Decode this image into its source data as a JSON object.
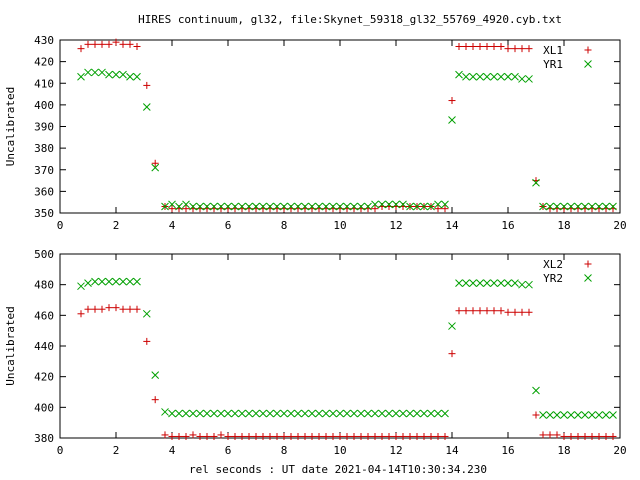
{
  "title": "HIRES continuum, gl32, file:Skynet_59318_gl32_55769_4920.cyb.txt",
  "xlabel": "rel seconds : UT date 2021-04-14T10:30:34.230",
  "colors": {
    "plus": "#cc0000",
    "cross": "#00a000"
  },
  "chart_data": [
    {
      "type": "scatter",
      "ylabel": "Uncalibrated",
      "xlim": [
        0,
        20
      ],
      "ylim": [
        350,
        430
      ],
      "xticks": [
        0,
        2,
        4,
        6,
        8,
        10,
        12,
        14,
        16,
        18,
        20
      ],
      "yticks": [
        350,
        360,
        370,
        380,
        390,
        400,
        410,
        420,
        430
      ],
      "legend_position": "top-right",
      "series": [
        {
          "name": "XL1",
          "marker": "plus",
          "color": "#cc0000",
          "x": [
            0.75,
            1.0,
            1.25,
            1.5,
            1.75,
            2.0,
            2.25,
            2.5,
            2.75,
            3.1,
            3.4,
            3.75,
            4.0,
            4.25,
            4.5,
            4.75,
            5.0,
            5.25,
            5.5,
            5.75,
            6.0,
            6.25,
            6.5,
            6.75,
            7.0,
            7.25,
            7.5,
            7.75,
            8.0,
            8.25,
            8.5,
            8.75,
            9.0,
            9.25,
            9.5,
            9.75,
            10.0,
            10.25,
            10.5,
            10.75,
            11.0,
            11.25,
            11.5,
            11.75,
            12.0,
            12.25,
            12.5,
            12.75,
            13.0,
            13.25,
            13.5,
            13.75,
            14.0,
            14.25,
            14.5,
            14.75,
            15.0,
            15.25,
            15.5,
            15.75,
            16.0,
            16.25,
            16.5,
            16.75,
            17.0,
            17.25,
            17.5,
            17.75,
            18.0,
            18.25,
            18.5,
            18.75,
            19.0,
            19.25,
            19.5,
            19.75
          ],
          "y": [
            426,
            428,
            428,
            428,
            428,
            429,
            428,
            428,
            427,
            409,
            373,
            353,
            352,
            352,
            352,
            352,
            352,
            352,
            352,
            352,
            352,
            352,
            352,
            352,
            352,
            352,
            352,
            352,
            352,
            352,
            352,
            352,
            352,
            352,
            352,
            352,
            352,
            352,
            352,
            352,
            352,
            352,
            353,
            353,
            353,
            353,
            353,
            353,
            353,
            353,
            352,
            352,
            402,
            427,
            427,
            427,
            427,
            427,
            427,
            427,
            426,
            426,
            426,
            426,
            365,
            353,
            352,
            352,
            352,
            352,
            352,
            352,
            352,
            352,
            352,
            352
          ]
        },
        {
          "name": "YR1",
          "marker": "cross",
          "color": "#00a000",
          "x": [
            0.75,
            1.0,
            1.25,
            1.5,
            1.75,
            2.0,
            2.25,
            2.5,
            2.75,
            3.1,
            3.4,
            3.75,
            4.0,
            4.25,
            4.5,
            4.75,
            5.0,
            5.25,
            5.5,
            5.75,
            6.0,
            6.25,
            6.5,
            6.75,
            7.0,
            7.25,
            7.5,
            7.75,
            8.0,
            8.25,
            8.5,
            8.75,
            9.0,
            9.25,
            9.5,
            9.75,
            10.0,
            10.25,
            10.5,
            10.75,
            11.0,
            11.25,
            11.5,
            11.75,
            12.0,
            12.25,
            12.5,
            12.75,
            13.0,
            13.25,
            13.5,
            13.75,
            14.0,
            14.25,
            14.5,
            14.75,
            15.0,
            15.25,
            15.5,
            15.75,
            16.0,
            16.25,
            16.5,
            16.75,
            17.0,
            17.25,
            17.5,
            17.75,
            18.0,
            18.25,
            18.5,
            18.75,
            19.0,
            19.25,
            19.5,
            19.75
          ],
          "y": [
            413,
            415,
            415,
            415,
            414,
            414,
            414,
            413,
            413,
            399,
            371,
            353,
            354,
            353,
            354,
            353,
            353,
            353,
            353,
            353,
            353,
            353,
            353,
            353,
            353,
            353,
            353,
            353,
            353,
            353,
            353,
            353,
            353,
            353,
            353,
            353,
            353,
            353,
            353,
            353,
            353,
            354,
            354,
            354,
            354,
            354,
            353,
            353,
            353,
            353,
            354,
            354,
            393,
            414,
            413,
            413,
            413,
            413,
            413,
            413,
            413,
            413,
            412,
            412,
            364,
            353,
            353,
            353,
            353,
            353,
            353,
            353,
            353,
            353,
            353,
            353
          ]
        }
      ]
    },
    {
      "type": "scatter",
      "ylabel": "Uncalibrated",
      "xlim": [
        0,
        20
      ],
      "ylim": [
        380,
        500
      ],
      "xticks": [
        0,
        2,
        4,
        6,
        8,
        10,
        12,
        14,
        16,
        18,
        20
      ],
      "yticks": [
        380,
        400,
        420,
        440,
        460,
        480,
        500
      ],
      "legend_position": "top-right",
      "series": [
        {
          "name": "XL2",
          "marker": "plus",
          "color": "#cc0000",
          "x": [
            0.75,
            1.0,
            1.25,
            1.5,
            1.75,
            2.0,
            2.25,
            2.5,
            2.75,
            3.1,
            3.4,
            3.75,
            4.0,
            4.25,
            4.5,
            4.75,
            5.0,
            5.25,
            5.5,
            5.75,
            6.0,
            6.25,
            6.5,
            6.75,
            7.0,
            7.25,
            7.5,
            7.75,
            8.0,
            8.25,
            8.5,
            8.75,
            9.0,
            9.25,
            9.5,
            9.75,
            10.0,
            10.25,
            10.5,
            10.75,
            11.0,
            11.25,
            11.5,
            11.75,
            12.0,
            12.25,
            12.5,
            12.75,
            13.0,
            13.25,
            13.5,
            13.75,
            14.0,
            14.25,
            14.5,
            14.75,
            15.0,
            15.25,
            15.5,
            15.75,
            16.0,
            16.25,
            16.5,
            16.75,
            17.0,
            17.25,
            17.5,
            17.75,
            18.0,
            18.25,
            18.5,
            18.75,
            19.0,
            19.25,
            19.5,
            19.75
          ],
          "y": [
            461,
            464,
            464,
            464,
            465,
            465,
            464,
            464,
            464,
            443,
            405,
            382,
            381,
            381,
            381,
            382,
            381,
            381,
            381,
            382,
            381,
            381,
            381,
            381,
            381,
            381,
            381,
            381,
            381,
            381,
            381,
            381,
            381,
            381,
            381,
            381,
            381,
            381,
            381,
            381,
            381,
            381,
            381,
            381,
            381,
            381,
            381,
            381,
            381,
            381,
            381,
            381,
            435,
            463,
            463,
            463,
            463,
            463,
            463,
            463,
            462,
            462,
            462,
            462,
            395,
            382,
            382,
            382,
            381,
            381,
            381,
            381,
            381,
            381,
            381,
            381
          ]
        },
        {
          "name": "YR2",
          "marker": "cross",
          "color": "#00a000",
          "x": [
            0.75,
            1.0,
            1.25,
            1.5,
            1.75,
            2.0,
            2.25,
            2.5,
            2.75,
            3.1,
            3.4,
            3.75,
            4.0,
            4.25,
            4.5,
            4.75,
            5.0,
            5.25,
            5.5,
            5.75,
            6.0,
            6.25,
            6.5,
            6.75,
            7.0,
            7.25,
            7.5,
            7.75,
            8.0,
            8.25,
            8.5,
            8.75,
            9.0,
            9.25,
            9.5,
            9.75,
            10.0,
            10.25,
            10.5,
            10.75,
            11.0,
            11.25,
            11.5,
            11.75,
            12.0,
            12.25,
            12.5,
            12.75,
            13.0,
            13.25,
            13.5,
            13.75,
            14.0,
            14.25,
            14.5,
            14.75,
            15.0,
            15.25,
            15.5,
            15.75,
            16.0,
            16.25,
            16.5,
            16.75,
            17.0,
            17.25,
            17.5,
            17.75,
            18.0,
            18.25,
            18.5,
            18.75,
            19.0,
            19.25,
            19.5,
            19.75
          ],
          "y": [
            479,
            481,
            482,
            482,
            482,
            482,
            482,
            482,
            482,
            461,
            421,
            397,
            396,
            396,
            396,
            396,
            396,
            396,
            396,
            396,
            396,
            396,
            396,
            396,
            396,
            396,
            396,
            396,
            396,
            396,
            396,
            396,
            396,
            396,
            396,
            396,
            396,
            396,
            396,
            396,
            396,
            396,
            396,
            396,
            396,
            396,
            396,
            396,
            396,
            396,
            396,
            396,
            453,
            481,
            481,
            481,
            481,
            481,
            481,
            481,
            481,
            481,
            480,
            480,
            411,
            395,
            395,
            395,
            395,
            395,
            395,
            395,
            395,
            395,
            395,
            395
          ]
        }
      ]
    }
  ]
}
